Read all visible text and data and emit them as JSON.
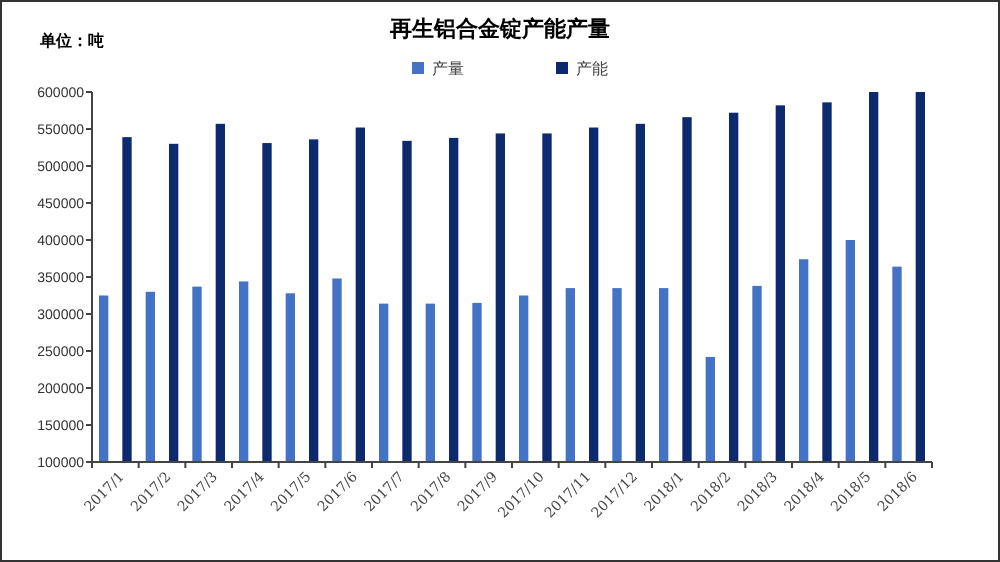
{
  "chart_data": {
    "type": "bar",
    "title": "再生铝合金锭产能产量",
    "annotations": [
      "单位：吨"
    ],
    "categories": [
      "2017/1",
      "2017/2",
      "2017/3",
      "2017/4",
      "2017/5",
      "2017/6",
      "2017/7",
      "2017/8",
      "2017/9",
      "2017/10",
      "2017/11",
      "2017/12",
      "2018/1",
      "2018/2",
      "2018/3",
      "2018/4",
      "2018/5",
      "2018/6"
    ],
    "series": [
      {
        "name": "产量",
        "color": "#4472c4",
        "values": [
          325000,
          330000,
          337000,
          344000,
          328000,
          348000,
          314000,
          314000,
          315000,
          325000,
          335000,
          335000,
          335000,
          242000,
          338000,
          374000,
          400000,
          364000
        ]
      },
      {
        "name": "产能",
        "color": "#0d2a6e",
        "values": [
          539000,
          530000,
          557000,
          531000,
          536000,
          552000,
          534000,
          538000,
          544000,
          544000,
          552000,
          557000,
          566000,
          572000,
          582000,
          586000,
          600000,
          600000
        ]
      }
    ],
    "ylim": [
      100000,
      600000
    ],
    "yticks": [
      100000,
      150000,
      200000,
      250000,
      300000,
      350000,
      400000,
      450000,
      500000,
      550000,
      600000
    ],
    "grid": false,
    "legend": "top"
  }
}
